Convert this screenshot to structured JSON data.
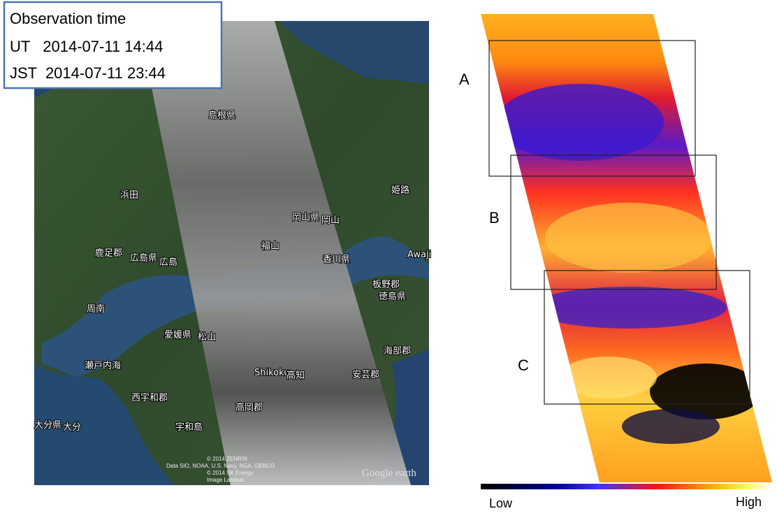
{
  "observation": {
    "title": "Observation time",
    "lines": [
      "UT   2014-07-11 14:44",
      "JST  2014-07-11 23:44"
    ]
  },
  "map_labels": [
    "島根県",
    "浜田",
    "姫路",
    "岡山県",
    "岡山",
    "鹿足郡",
    "広島県",
    "広島",
    "福山",
    "香川県",
    "Awaji",
    "板野郡",
    "徳島県",
    "周南",
    "愛媛県",
    "松山",
    "海部郡",
    "瀬戸内海",
    "Shikoku",
    "高知",
    "安芸郡",
    "西宇和郡",
    "高岡郡",
    "大分県",
    "大分",
    "宇和島"
  ],
  "map_credits": [
    "© 2014 ZENRIN",
    "Data SIO, NOAA, U.S. Navy, NGA, GEBCO",
    "© 2014 SK Energy",
    "Image Landsat"
  ],
  "map_brand": "Google earth",
  "regions": [
    "A",
    "B",
    "C"
  ],
  "colorbar": {
    "low": "Low",
    "high": "High"
  }
}
